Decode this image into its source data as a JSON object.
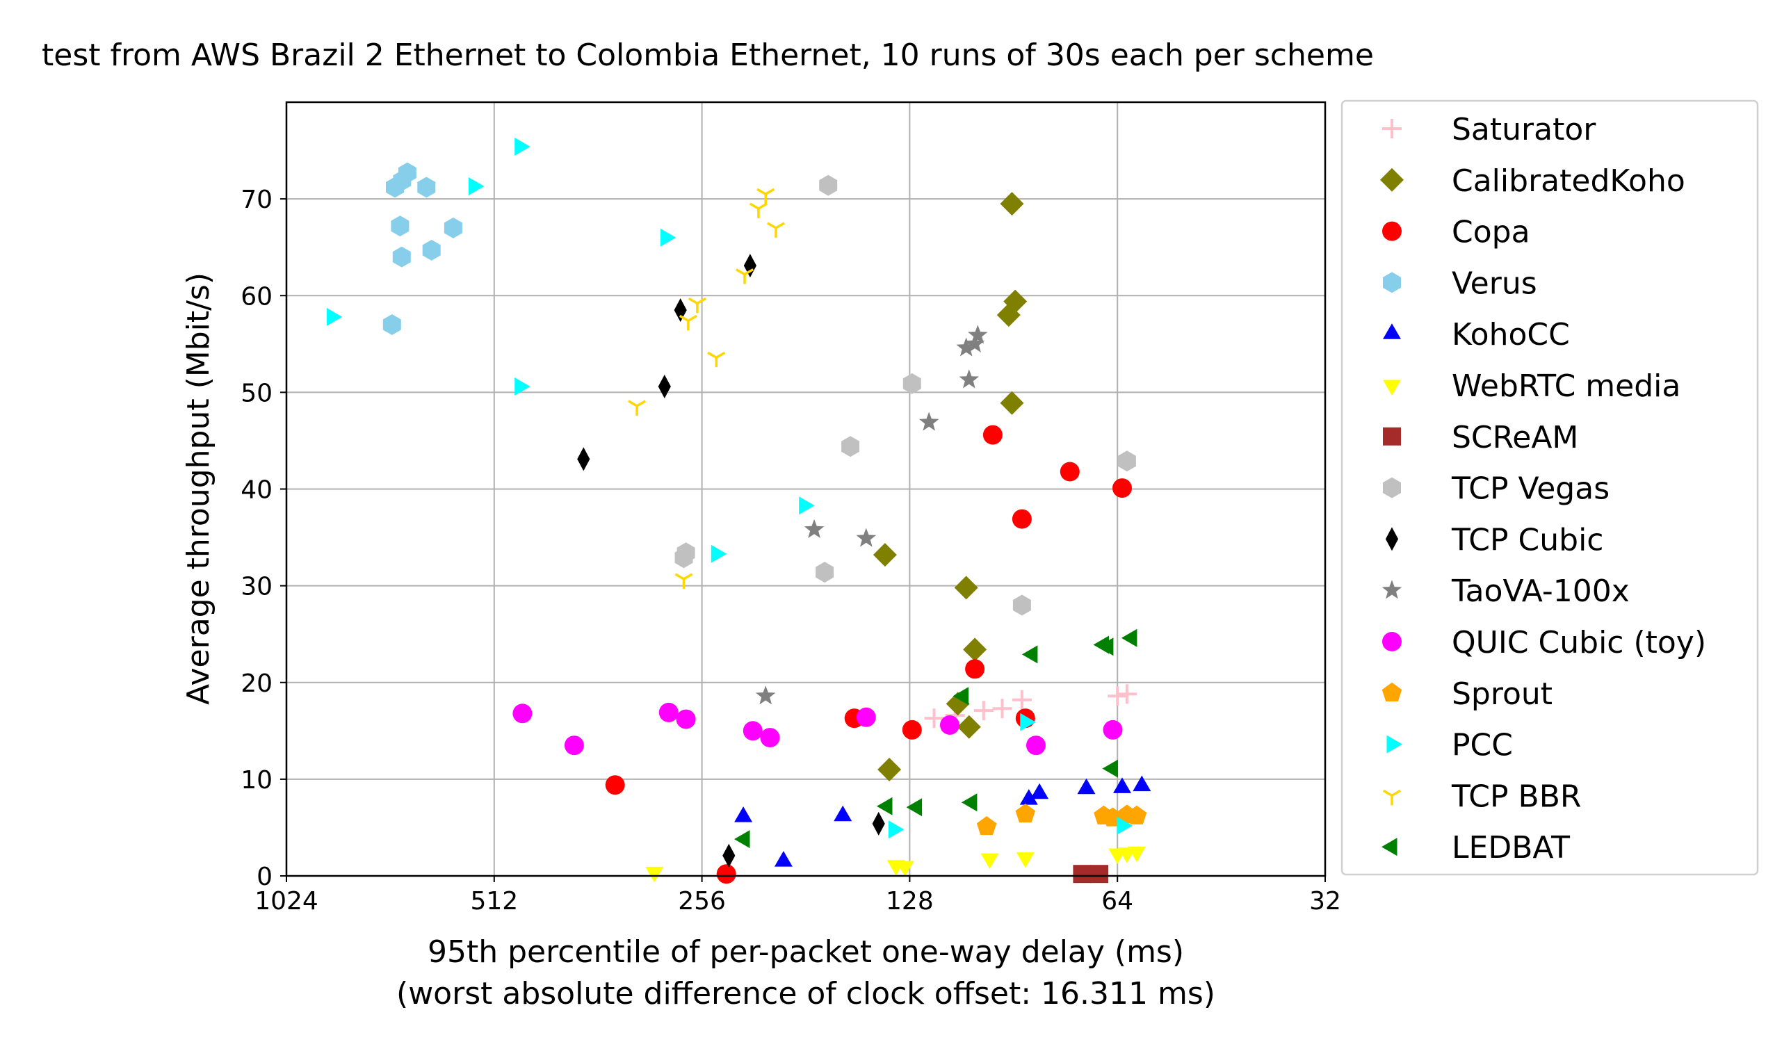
{
  "chart_data": {
    "type": "scatter",
    "title": "test from AWS Brazil 2 Ethernet to Colombia Ethernet, 10 runs of 30s each per scheme",
    "xlabel": "95th percentile of per-packet one-way delay (ms)",
    "xlabel2": "(worst absolute difference of clock offset: 16.311 ms)",
    "ylabel": "Average throughput (Mbit/s)",
    "xscale": "log2",
    "x_inverted": true,
    "xlim": [
      1024,
      32
    ],
    "ylim": [
      0,
      80
    ],
    "xticks": [
      1024,
      512,
      256,
      128,
      64,
      32
    ],
    "xtick_labels": [
      "1024",
      "512",
      "256",
      "128",
      "64",
      "32"
    ],
    "yticks": [
      0,
      10,
      20,
      30,
      40,
      50,
      60,
      70
    ],
    "ytick_labels": [
      "0",
      "10",
      "20",
      "30",
      "40",
      "50",
      "60",
      "70"
    ],
    "grid": true,
    "legend_position": "outside-right",
    "series": [
      {
        "name": "Saturator",
        "color": "#ffc0cb",
        "marker": "plus",
        "points": [
          [
            118,
            16.3
          ],
          [
            110,
            16.6
          ],
          [
            100,
            17.1
          ],
          [
            94,
            17.3
          ],
          [
            88,
            18.2
          ],
          [
            64,
            18.6
          ],
          [
            62,
            18.8
          ]
        ]
      },
      {
        "name": "CalibratedKoho",
        "color": "#808000",
        "marker": "diamond",
        "points": [
          [
            91,
            69.5
          ],
          [
            90,
            59.4
          ],
          [
            92,
            58.0
          ],
          [
            91,
            48.9
          ],
          [
            139,
            33.2
          ],
          [
            106,
            29.8
          ],
          [
            103,
            23.4
          ],
          [
            109,
            17.8
          ],
          [
            105,
            15.4
          ],
          [
            137,
            11.0
          ]
        ]
      },
      {
        "name": "Copa",
        "color": "#ff0000",
        "marker": "circle",
        "points": [
          [
            97,
            45.6
          ],
          [
            75,
            41.8
          ],
          [
            63,
            40.1
          ],
          [
            88,
            36.9
          ],
          [
            103,
            21.4
          ],
          [
            87,
            16.3
          ],
          [
            154,
            16.3
          ],
          [
            127,
            15.1
          ],
          [
            342,
            9.4
          ],
          [
            236,
            0.2
          ]
        ]
      },
      {
        "name": "Verus",
        "color": "#87ceeb",
        "marker": "hexagon",
        "points": [
          [
            713,
            71.2
          ],
          [
            696,
            71.9
          ],
          [
            684,
            72.7
          ],
          [
            642,
            71.2
          ],
          [
            701,
            67.2
          ],
          [
            587,
            67.0
          ],
          [
            697,
            64.0
          ],
          [
            631,
            64.7
          ],
          [
            720,
            57.0
          ]
        ]
      },
      {
        "name": "KohoCC",
        "color": "#0000ff",
        "marker": "triangle-up",
        "points": [
          [
            223,
            6.1
          ],
          [
            195,
            1.5
          ],
          [
            160,
            6.2
          ],
          [
            86,
            7.9
          ],
          [
            83,
            8.5
          ],
          [
            71,
            9.0
          ],
          [
            63,
            9.1
          ],
          [
            59,
            9.3
          ]
        ]
      },
      {
        "name": "WebRTC media",
        "color": "#ffff00",
        "marker": "triangle-down",
        "points": [
          [
            300,
            0.4
          ],
          [
            134,
            1.1
          ],
          [
            130,
            1.0
          ],
          [
            98,
            1.8
          ],
          [
            87,
            1.9
          ],
          [
            64,
            2.3
          ],
          [
            62,
            2.4
          ],
          [
            60,
            2.5
          ]
        ]
      },
      {
        "name": "SCReAM",
        "color": "#a52a2a",
        "marker": "square",
        "points": [
          [
            72,
            0.2
          ],
          [
            68,
            0.2
          ]
        ]
      },
      {
        "name": "TCP Vegas",
        "color": "#c0c0c0",
        "marker": "hexagon",
        "points": [
          [
            168,
            71.4
          ],
          [
            127,
            50.9
          ],
          [
            156,
            44.4
          ],
          [
            62,
            42.9
          ],
          [
            270,
            33.4
          ],
          [
            272,
            32.9
          ],
          [
            170,
            31.4
          ],
          [
            88,
            28.0
          ]
        ]
      },
      {
        "name": "TCP Cubic",
        "color": "#000000",
        "marker": "thin-diamond",
        "points": [
          [
            218,
            63.1
          ],
          [
            275,
            58.5
          ],
          [
            290,
            50.6
          ],
          [
            380,
            43.1
          ],
          [
            234,
            2.1
          ],
          [
            142,
            5.4
          ]
        ]
      },
      {
        "name": "TaoVA-100x",
        "color": "#808080",
        "marker": "star",
        "points": [
          [
            102,
            55.9
          ],
          [
            103,
            55.0
          ],
          [
            106,
            54.6
          ],
          [
            105,
            51.3
          ],
          [
            120,
            46.9
          ],
          [
            176,
            35.8
          ],
          [
            148,
            34.9
          ],
          [
            207,
            18.6
          ]
        ]
      },
      {
        "name": "QUIC Cubic (toy)",
        "color": "#ff00ff",
        "marker": "circle",
        "points": [
          [
            466,
            16.8
          ],
          [
            392,
            13.5
          ],
          [
            286,
            16.9
          ],
          [
            270,
            16.2
          ],
          [
            216,
            15.0
          ],
          [
            204,
            14.3
          ],
          [
            148,
            16.4
          ],
          [
            112,
            15.6
          ],
          [
            84,
            13.5
          ],
          [
            65,
            15.1
          ]
        ]
      },
      {
        "name": "Sprout",
        "color": "#ffa500",
        "marker": "pentagon",
        "points": [
          [
            99,
            5.1
          ],
          [
            87,
            6.4
          ],
          [
            67,
            6.2
          ],
          [
            65,
            6.0
          ],
          [
            62,
            6.3
          ],
          [
            60,
            6.2
          ]
        ]
      },
      {
        "name": "PCC",
        "color": "#00ffff",
        "marker": "triangle-right",
        "points": [
          [
            880,
            57.8
          ],
          [
            470,
            75.4
          ],
          [
            548,
            71.3
          ],
          [
            289,
            66.0
          ],
          [
            470,
            50.6
          ],
          [
            182,
            38.3
          ],
          [
            244,
            33.3
          ],
          [
            87,
            15.9
          ],
          [
            135,
            4.8
          ],
          [
            63,
            5.2
          ]
        ]
      },
      {
        "name": "TCP BBR",
        "color": "#ffd700",
        "marker": "tri-down",
        "points": [
          [
            207,
            70.5
          ],
          [
            212,
            69.0
          ],
          [
            200,
            67.0
          ],
          [
            222,
            62.2
          ],
          [
            260,
            59.2
          ],
          [
            268,
            57.4
          ],
          [
            244,
            53.6
          ],
          [
            318,
            48.6
          ],
          [
            272,
            30.7
          ]
        ]
      },
      {
        "name": "LEDBAT",
        "color": "#008000",
        "marker": "triangle-left",
        "points": [
          [
            61,
            24.6
          ],
          [
            66,
            23.7
          ],
          [
            67,
            23.9
          ],
          [
            85,
            22.9
          ],
          [
            107,
            18.6
          ],
          [
            65,
            11.1
          ],
          [
            104,
            7.6
          ],
          [
            125,
            7.1
          ],
          [
            138,
            7.2
          ],
          [
            222,
            3.8
          ]
        ]
      }
    ]
  }
}
